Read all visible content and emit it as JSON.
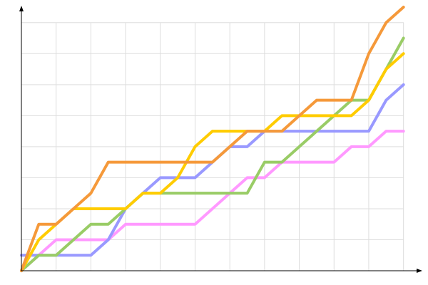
{
  "chart_data": {
    "type": "line",
    "x": [
      0,
      1,
      2,
      3,
      4,
      5,
      6,
      7,
      8,
      9,
      10,
      11,
      12,
      13,
      14,
      15,
      16,
      17,
      18,
      19,
      20,
      21,
      22
    ],
    "series": [
      {
        "color": "#f5993a",
        "values": [
          0,
          3,
          3,
          4,
          5,
          7,
          7,
          7,
          7,
          7,
          7,
          7,
          8,
          9,
          9,
          9,
          10,
          11,
          11,
          11,
          14,
          16,
          17
        ]
      },
      {
        "color": "#ffcc00",
        "values": [
          0,
          2,
          3,
          4,
          4,
          4,
          4,
          5,
          5,
          6,
          8,
          9,
          9,
          9,
          9,
          10,
          10,
          10,
          10,
          10,
          11,
          13,
          14
        ]
      },
      {
        "color": "#99cc66",
        "values": [
          0,
          1,
          1,
          2,
          3,
          3,
          4,
          5,
          5,
          5,
          5,
          5,
          5,
          5,
          7,
          7,
          8,
          9,
          10,
          11,
          11,
          13,
          15
        ]
      },
      {
        "color": "#9999ff",
        "values": [
          1,
          1,
          1,
          1,
          1,
          2,
          4,
          5,
          6,
          6,
          6,
          7,
          8,
          8,
          9,
          9,
          9,
          9,
          9,
          9,
          9,
          11,
          12
        ]
      },
      {
        "color": "#ff99ff",
        "values": [
          0,
          1,
          2,
          2,
          2,
          2,
          3,
          3,
          3,
          3,
          3,
          4,
          5,
          6,
          6,
          7,
          7,
          7,
          7,
          8,
          8,
          9,
          9
        ]
      }
    ],
    "xlim": [
      0,
      23
    ],
    "xticks": [
      0,
      2,
      4,
      6,
      8,
      10,
      12,
      14,
      16,
      18,
      20,
      22
    ],
    "ylim": [
      0,
      17
    ],
    "yticks": [
      0,
      2,
      4,
      6,
      8,
      10,
      12,
      14,
      16
    ],
    "grid": true
  }
}
